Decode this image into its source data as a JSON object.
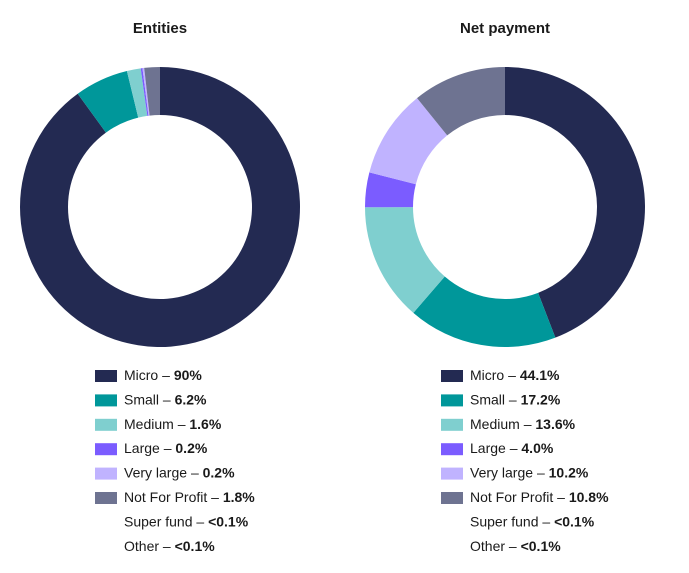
{
  "chart_data": [
    {
      "type": "donut",
      "title": "Entities",
      "label_separator": "–",
      "categories": [
        "Micro",
        "Small",
        "Medium",
        "Large",
        "Very large",
        "Not For Profit",
        "Super fund",
        "Other"
      ],
      "values": [
        90,
        6.2,
        1.6,
        0.2,
        0.2,
        1.8,
        0,
        0
      ],
      "value_labels": [
        "90%",
        "6.2%",
        "1.6%",
        "0.2%",
        "0.2%",
        "1.8%",
        "<0.1%",
        "<0.1%"
      ],
      "colors": [
        "#232a52",
        "#00979a",
        "#7fcfcf",
        "#7b5cff",
        "#c0b3ff",
        "#6e7391",
        null,
        null
      ]
    },
    {
      "type": "donut",
      "title": "Net payment",
      "label_separator": "–",
      "categories": [
        "Micro",
        "Small",
        "Medium",
        "Large",
        "Very large",
        "Not For Profit",
        "Super fund",
        "Other"
      ],
      "values": [
        44.1,
        17.2,
        13.6,
        4.0,
        10.2,
        10.8,
        0,
        0
      ],
      "value_labels": [
        "44.1%",
        "17.2%",
        "13.6%",
        "4.0%",
        "10.2%",
        "10.8%",
        "<0.1%",
        "<0.1%"
      ],
      "colors": [
        "#232a52",
        "#00979a",
        "#7fcfcf",
        "#7b5cff",
        "#c0b3ff",
        "#6e7391",
        null,
        null
      ]
    }
  ]
}
